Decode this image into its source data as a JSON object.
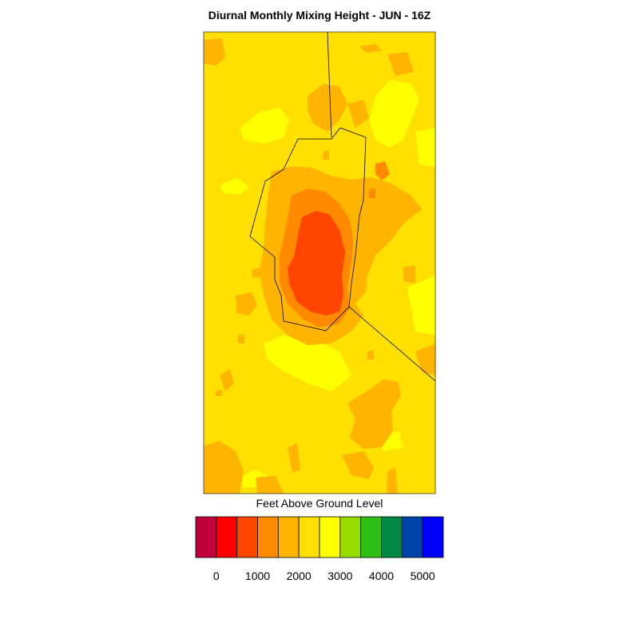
{
  "chart_data": {
    "type": "heatmap",
    "title": "Diurnal Monthly Mixing Height - JUN - 16Z",
    "legend": {
      "title": "Feet Above Ground Level",
      "tick_labels": [
        "0",
        "1000",
        "2000",
        "3000",
        "4000",
        "5000"
      ],
      "tick_values": [
        0,
        1000,
        2000,
        3000,
        4000,
        5000
      ],
      "bins": [
        {
          "min": -500,
          "max": 0,
          "color": "#c0003a"
        },
        {
          "min": 0,
          "max": 500,
          "color": "#ff0000"
        },
        {
          "min": 500,
          "max": 1000,
          "color": "#ff4500"
        },
        {
          "min": 1000,
          "max": 1500,
          "color": "#ff8a00"
        },
        {
          "min": 1500,
          "max": 2000,
          "color": "#ffb400"
        },
        {
          "min": 2000,
          "max": 2500,
          "color": "#ffe000"
        },
        {
          "min": 2500,
          "max": 3000,
          "color": "#ffff00"
        },
        {
          "min": 3000,
          "max": 3500,
          "color": "#99dd00"
        },
        {
          "min": 3500,
          "max": 4000,
          "color": "#2fbe14"
        },
        {
          "min": 4000,
          "max": 4500,
          "color": "#008844"
        },
        {
          "min": 4500,
          "max": 5000,
          "color": "#0044aa"
        },
        {
          "min": 5000,
          "max": 5500,
          "color": "#0000ff"
        }
      ]
    },
    "dominant_range_ft": [
      1500,
      2500
    ],
    "minimum_range_ft": [
      500,
      1000
    ]
  }
}
